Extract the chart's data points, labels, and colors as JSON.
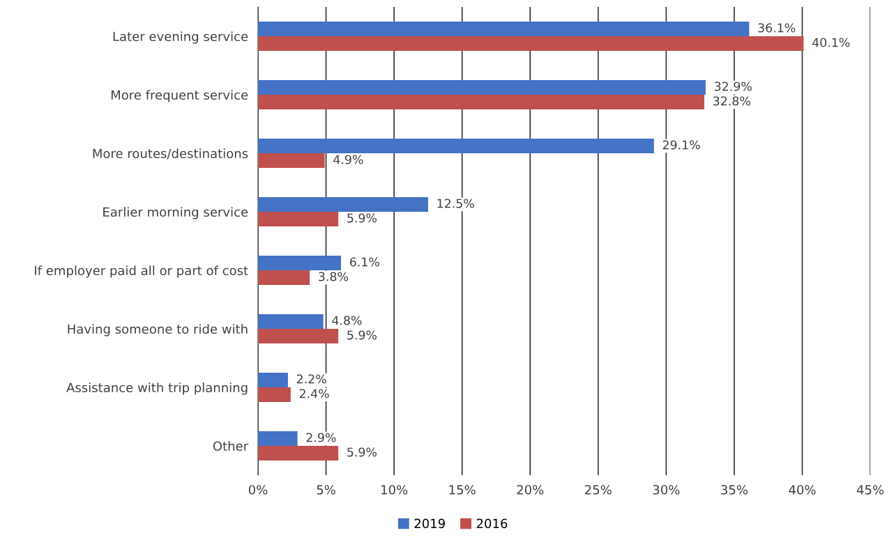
{
  "chart_data": {
    "type": "bar",
    "orientation": "horizontal",
    "categories": [
      "Later evening service",
      "More frequent service",
      "More routes/destinations",
      "Earlier morning service",
      "If employer paid all or part of cost",
      "Having someone to ride with",
      "Assistance with trip planning",
      "Other"
    ],
    "series": [
      {
        "name": "2019",
        "color": "#4472c4",
        "values": [
          36.1,
          32.9,
          29.1,
          12.5,
          6.1,
          4.8,
          2.2,
          2.9
        ],
        "value_labels": [
          "36.1%",
          "32.9%",
          "29.1%",
          "12.5%",
          "6.1%",
          "4.8%",
          "2.2%",
          "2.9%"
        ]
      },
      {
        "name": "2016",
        "color": "#c0504d",
        "values": [
          40.1,
          32.8,
          4.9,
          5.9,
          3.8,
          5.9,
          2.4,
          5.9
        ],
        "value_labels": [
          "40.1%",
          "32.8%",
          "4.9%",
          "5.9%",
          "3.8%",
          "5.9%",
          "2.4%",
          "5.9%"
        ]
      }
    ],
    "xlim": [
      0,
      45
    ],
    "xticks": [
      {
        "value": 0,
        "label": "0%"
      },
      {
        "value": 5,
        "label": "5%"
      },
      {
        "value": 10,
        "label": "10%"
      },
      {
        "value": 15,
        "label": "15%"
      },
      {
        "value": 20,
        "label": "20%"
      },
      {
        "value": 25,
        "label": "25%"
      },
      {
        "value": 30,
        "label": "30%"
      },
      {
        "value": 35,
        "label": "35%"
      },
      {
        "value": 40,
        "label": "40%"
      },
      {
        "value": 45,
        "label": "45%"
      }
    ],
    "grid": "x",
    "legend": "bottom"
  }
}
